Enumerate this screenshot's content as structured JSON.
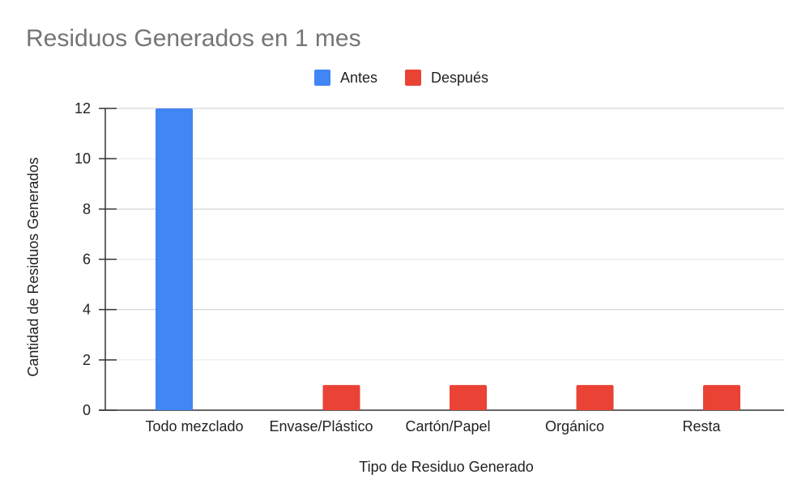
{
  "chart_data": {
    "type": "bar",
    "title": "Residuos Generados en 1 mes",
    "xlabel": "Tipo de Residuo Generado",
    "ylabel": "Cantidad de Residuos Generados",
    "categories": [
      "Todo mezclado",
      "Envase/Plástico",
      "Cartón/Papel",
      "Orgánico",
      "Resta"
    ],
    "series": [
      {
        "name": "Antes",
        "color": "#4285f4",
        "values": [
          12,
          0,
          0,
          0,
          0
        ]
      },
      {
        "name": "Después",
        "color": "#ea4335",
        "values": [
          0,
          1,
          1,
          1,
          1
        ]
      }
    ],
    "ylim": [
      0,
      12
    ],
    "yticks": [
      0,
      2,
      4,
      6,
      8,
      10,
      12
    ],
    "grid": true,
    "legend_position": "top-center"
  }
}
